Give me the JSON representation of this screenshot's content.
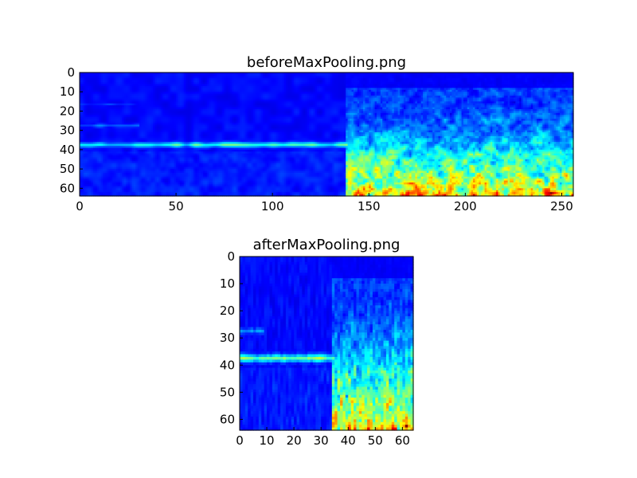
{
  "chart_data": [
    {
      "type": "heatmap",
      "title": "beforeMaxPooling.png",
      "xlim": [
        0,
        256
      ],
      "ylim": [
        0,
        64
      ],
      "y_inverted": true,
      "grid": false,
      "legend": "none",
      "colormap": "jet",
      "x_ticks": [
        0,
        50,
        100,
        150,
        200,
        250
      ],
      "y_ticks": [
        0,
        10,
        20,
        30,
        40,
        50,
        60
      ],
      "cols": 256,
      "rows": 64,
      "split_column": 138,
      "bands": [
        {
          "y": 37,
          "width": 2,
          "intensity": 0.45,
          "x_from": 0,
          "x_to": 138
        },
        {
          "y": 27,
          "width": 2,
          "intensity": 0.25,
          "x_from": 0,
          "x_to": 30
        },
        {
          "y": 16,
          "width": 1,
          "intensity": 0.18,
          "x_from": 0,
          "x_to": 30
        }
      ],
      "hot_spots": [
        {
          "x": 244,
          "y": 62,
          "intensity": 1.0
        },
        {
          "x": 185,
          "y": 63,
          "intensity": 0.85
        }
      ]
    },
    {
      "type": "heatmap",
      "title": "afterMaxPooling.png",
      "xlim": [
        0,
        64
      ],
      "ylim": [
        0,
        64
      ],
      "y_inverted": true,
      "grid": false,
      "legend": "none",
      "colormap": "jet",
      "x_ticks": [
        0,
        10,
        20,
        30,
        40,
        50,
        60
      ],
      "y_ticks": [
        0,
        10,
        20,
        30,
        40,
        50,
        60
      ],
      "cols": 64,
      "rows": 64,
      "split_column": 34,
      "bands": [
        {
          "y": 37,
          "width": 2,
          "intensity": 0.5,
          "x_from": 0,
          "x_to": 34
        },
        {
          "y": 27,
          "width": 2,
          "intensity": 0.3,
          "x_from": 0,
          "x_to": 8
        }
      ],
      "hot_spots": [
        {
          "x": 61,
          "y": 62,
          "intensity": 1.0
        },
        {
          "x": 47,
          "y": 63,
          "intensity": 0.9
        }
      ]
    }
  ]
}
